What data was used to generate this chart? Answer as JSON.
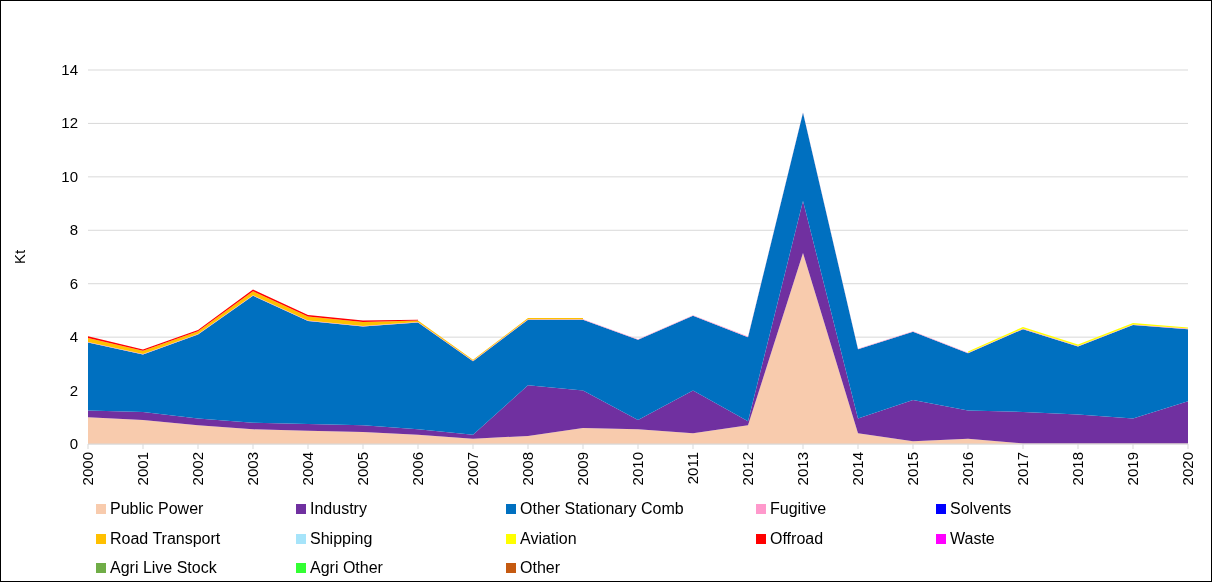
{
  "chart_data": {
    "type": "area",
    "stacked": true,
    "ylabel": "Kt",
    "ylim": [
      0,
      14
    ],
    "yticks": [
      0,
      2,
      4,
      6,
      8,
      10,
      12,
      14
    ],
    "grid": "y",
    "legend": "bottom",
    "categories": [
      "2000",
      "2001",
      "2002",
      "2003",
      "2004",
      "2005",
      "2006",
      "2007",
      "2008",
      "2009",
      "2010",
      "2011",
      "2012",
      "2013",
      "2014",
      "2015",
      "2016",
      "2017",
      "2018",
      "2019",
      "2020"
    ],
    "series": [
      {
        "name": "Public Power",
        "color": "#f8cbad",
        "values": [
          1.0,
          0.9,
          0.7,
          0.55,
          0.5,
          0.45,
          0.35,
          0.2,
          0.3,
          0.6,
          0.55,
          0.4,
          0.7,
          7.15,
          0.4,
          0.1,
          0.2,
          0.02,
          0.02,
          0.02,
          0.02
        ]
      },
      {
        "name": "Industry",
        "color": "#7030a0",
        "values": [
          0.25,
          0.3,
          0.25,
          0.25,
          0.25,
          0.25,
          0.2,
          0.15,
          1.9,
          1.4,
          0.35,
          1.6,
          0.15,
          1.95,
          0.55,
          1.55,
          1.05,
          1.18,
          1.08,
          0.93,
          1.58
        ]
      },
      {
        "name": "Other Stationary Comb",
        "color": "#0070c0",
        "values": [
          2.55,
          2.15,
          3.15,
          4.75,
          3.85,
          3.7,
          4.0,
          2.75,
          2.45,
          2.65,
          3.0,
          2.8,
          3.15,
          3.3,
          2.6,
          2.55,
          2.15,
          3.1,
          2.55,
          3.5,
          2.7
        ]
      },
      {
        "name": "Fugitive",
        "color": "#ff99cc",
        "values": [
          0.02,
          0.02,
          0.02,
          0.02,
          0.02,
          0.02,
          0.02,
          0.02,
          0.02,
          0.02,
          0.02,
          0.02,
          0.02,
          0.02,
          0.02,
          0.02,
          0.02,
          0.02,
          0.02,
          0.02,
          0.02
        ]
      },
      {
        "name": "Solvents",
        "color": "#0000ff",
        "values": [
          null,
          null,
          null,
          null,
          null,
          null,
          null,
          null,
          null,
          null,
          null,
          null,
          null,
          null,
          null,
          null,
          null,
          null,
          null,
          null,
          null
        ]
      },
      {
        "name": "Road Transport",
        "color": "#ffc000",
        "values": [
          0.15,
          0.12,
          0.1,
          0.15,
          0.15,
          0.15,
          0.05,
          0.03,
          0.05,
          0.05,
          null,
          null,
          null,
          null,
          null,
          null,
          null,
          null,
          null,
          null,
          null
        ]
      },
      {
        "name": "Shipping",
        "color": "#a6e4fa",
        "values": [
          null,
          null,
          null,
          null,
          null,
          null,
          null,
          null,
          null,
          null,
          null,
          null,
          null,
          null,
          null,
          null,
          null,
          null,
          null,
          null,
          null
        ]
      },
      {
        "name": "Aviation",
        "color": "#ffff00",
        "values": [
          null,
          null,
          null,
          null,
          null,
          null,
          null,
          null,
          null,
          null,
          null,
          null,
          null,
          null,
          null,
          null,
          0.04,
          0.06,
          0.05,
          0.06,
          0.04
        ]
      },
      {
        "name": "Offroad",
        "color": "#ff0000",
        "values": [
          0.06,
          0.05,
          0.05,
          0.06,
          0.06,
          0.05,
          0.03,
          null,
          null,
          null,
          null,
          null,
          null,
          null,
          null,
          null,
          null,
          null,
          null,
          null,
          null
        ]
      },
      {
        "name": "Waste",
        "color": "#ff00ff",
        "values": [
          null,
          null,
          null,
          null,
          null,
          null,
          null,
          null,
          null,
          null,
          null,
          null,
          null,
          null,
          null,
          null,
          null,
          null,
          null,
          null,
          null
        ]
      },
      {
        "name": "Agri Live Stock",
        "color": "#70ad47",
        "values": [
          null,
          null,
          null,
          null,
          null,
          null,
          null,
          null,
          null,
          null,
          null,
          null,
          null,
          null,
          null,
          null,
          null,
          null,
          null,
          null,
          null
        ]
      },
      {
        "name": "Agri Other",
        "color": "#33ff33",
        "values": [
          null,
          null,
          null,
          null,
          null,
          null,
          null,
          null,
          null,
          null,
          null,
          null,
          null,
          null,
          null,
          null,
          null,
          null,
          null,
          null,
          null
        ]
      },
      {
        "name": "Other",
        "color": "#c55a11",
        "values": [
          null,
          null,
          null,
          null,
          null,
          null,
          null,
          null,
          null,
          null,
          null,
          null,
          null,
          null,
          null,
          null,
          null,
          null,
          null,
          null,
          null
        ]
      }
    ]
  }
}
